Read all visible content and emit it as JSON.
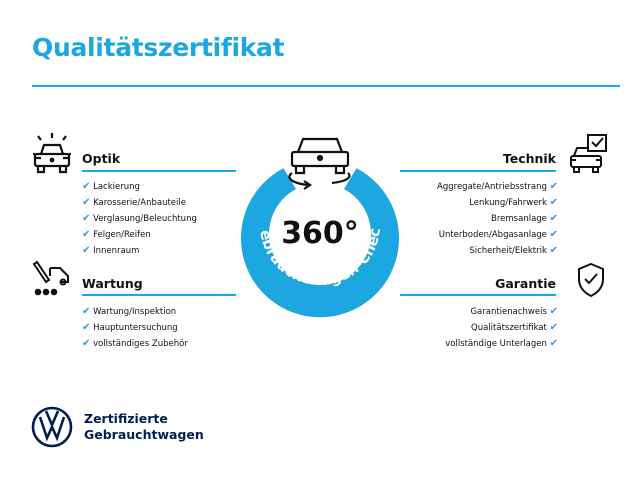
{
  "title": "Qualitätszertifikat",
  "center": {
    "value": "360°",
    "ring_text": "Gebrauchtwagen-Check",
    "ring_color": "#1ca7e0"
  },
  "sections": {
    "optik": {
      "title": "Optik",
      "icon": "car-lights-icon",
      "items": [
        "Lackierung",
        "Karosserie/Anbauteile",
        "Verglasung/Beleuchtung",
        "Felgen/Reifen",
        "Innenraum"
      ]
    },
    "wartung": {
      "title": "Wartung",
      "icon": "service-wrench-car-icon",
      "items": [
        "Wartung/Inspektion",
        "Hauptuntersuchung",
        "vollständiges Zubehör"
      ]
    },
    "technik": {
      "title": "Technik",
      "icon": "car-checklist-icon",
      "items": [
        "Aggregate/Antriebsstrang",
        "Lenkung/Fahrwerk",
        "Bremsanlage",
        "Unterboden/Abgasanlage",
        "Sicherheit/Elektrik"
      ]
    },
    "garantie": {
      "title": "Garantie",
      "icon": "shield-check-icon",
      "items": [
        "Garantienachweis",
        "Qualitätszertifikat",
        "vollständige Unterlagen"
      ]
    }
  },
  "check_glyph": "✔",
  "brand": {
    "line1": "Zertifizierte",
    "line2": "Gebrauchtwagen",
    "logo": "vw-logo"
  }
}
